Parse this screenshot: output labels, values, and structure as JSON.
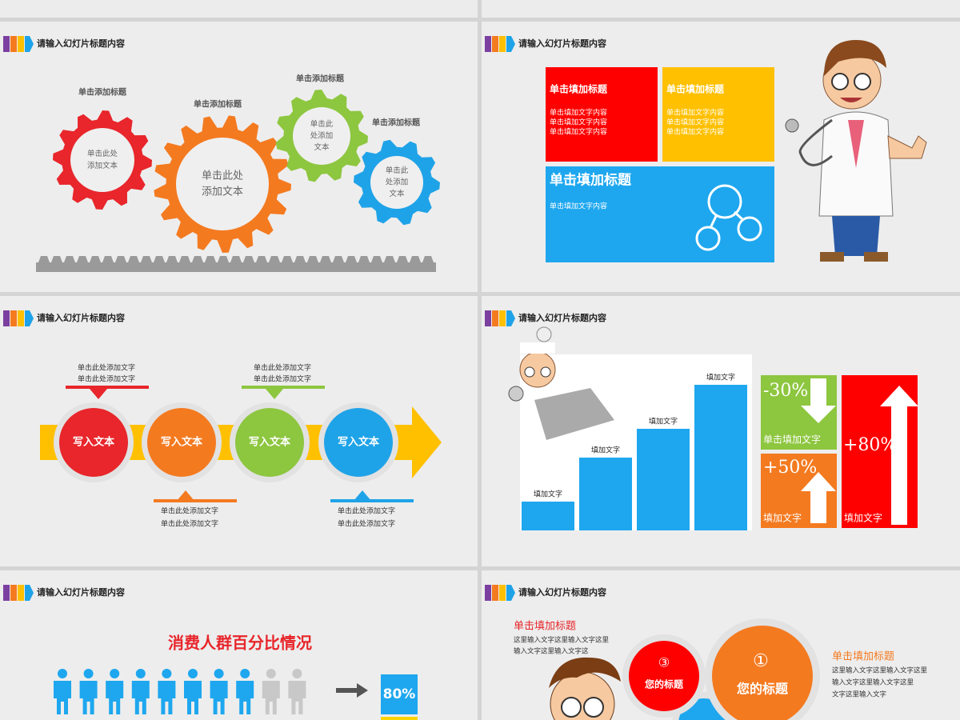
{
  "slides": [
    {
      "header": "请输入幻灯片标题内容",
      "gears": [
        {
          "title": "单击添加标题",
          "lines": [
            "单击此处",
            "添加文本"
          ]
        },
        {
          "title": "单击添加标题",
          "lines": [
            "单击此处",
            "添加文本"
          ]
        },
        {
          "title": "单击添加标题",
          "lines": [
            "单击此",
            "处添加",
            "文本"
          ]
        },
        {
          "title": "单击添加标题",
          "lines": [
            "单击此",
            "处添加",
            "文本"
          ]
        }
      ]
    },
    {
      "header": "请输入幻灯片标题内容",
      "boxes": [
        {
          "title": "单击填加标题",
          "lines": [
            "单击填加文字内容",
            "单击填加文字内容",
            "单击填加文字内容"
          ]
        },
        {
          "title": "单击填加标题",
          "lines": [
            "单击填加文字内容",
            "单击填加文字内容",
            "单击填加文字内容"
          ]
        },
        {
          "title": "单击填加标题",
          "lines": [
            "单击填加文字内容"
          ]
        }
      ]
    },
    {
      "header": "请输入幻灯片标题内容",
      "circles": [
        "写入文本",
        "写入文本",
        "写入文本",
        "写入文本"
      ],
      "notes": [
        {
          "lines": [
            "单击此处添加文字",
            "单击此处添加文字"
          ]
        },
        {
          "lines": [
            "单击此处添加文字",
            "单击此处添加文字"
          ]
        },
        {
          "lines": [
            "单击此处添加文字",
            "单击此处添加文字"
          ]
        },
        {
          "lines": [
            "单击此处添加文字",
            "单击此处添加文字"
          ]
        }
      ]
    },
    {
      "header": "请输入幻灯片标题内容",
      "bar_labels": [
        "填加文字",
        "填加文字",
        "填加文字",
        "填加文字"
      ],
      "stats": [
        {
          "value": "-30%",
          "caption": "单击填加文字"
        },
        {
          "value": "+50%",
          "caption": "填加文字"
        },
        {
          "value": "+80%",
          "caption": "填加文字"
        }
      ]
    },
    {
      "header": "请输入幻灯片标题内容",
      "title": "消费人群百分比情况",
      "percent": "80%"
    },
    {
      "header": "请输入幻灯片标题内容",
      "left": {
        "title": "单击填加标题",
        "lines": [
          "这里输入文字这里输入文字这里",
          "输入文字这里输入文字这"
        ]
      },
      "circles": [
        {
          "num": "③",
          "label": "您的标题"
        },
        {
          "num": "①",
          "label": "您的标题"
        }
      ],
      "right": {
        "title": "单击填加标题",
        "lines": [
          "这里输入文字这里输入文字这里",
          "输入文字这里输入文字这里",
          "文字这里输入文字"
        ]
      }
    }
  ]
}
